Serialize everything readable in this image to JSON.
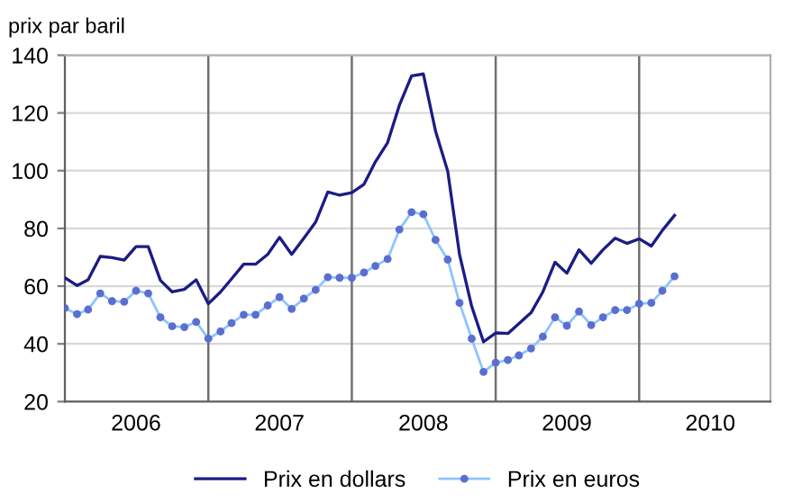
{
  "chart_data": {
    "type": "line",
    "ylabel": "prix par baril",
    "x": [
      "2006-01",
      "2006-02",
      "2006-03",
      "2006-04",
      "2006-05",
      "2006-06",
      "2006-07",
      "2006-08",
      "2006-09",
      "2006-10",
      "2006-11",
      "2006-12",
      "2007-01",
      "2007-02",
      "2007-03",
      "2007-04",
      "2007-05",
      "2007-06",
      "2007-07",
      "2007-08",
      "2007-09",
      "2007-10",
      "2007-11",
      "2007-12",
      "2008-01",
      "2008-02",
      "2008-03",
      "2008-04",
      "2008-05",
      "2008-06",
      "2008-07",
      "2008-08",
      "2008-09",
      "2008-10",
      "2008-11",
      "2008-12",
      "2009-01",
      "2009-02",
      "2009-03",
      "2009-04",
      "2009-05",
      "2009-06",
      "2009-07",
      "2009-08",
      "2009-09",
      "2009-10",
      "2009-11",
      "2009-12",
      "2010-01",
      "2010-02",
      "2010-03",
      "2010-04"
    ],
    "series": [
      {
        "name": "Prix en dollars",
        "color": "#1c1c86",
        "marker": "none",
        "values": [
          62.9,
          60.2,
          62.2,
          70.3,
          69.9,
          69.0,
          73.7,
          73.7,
          62.0,
          58.0,
          58.9,
          62.2,
          53.9,
          58.0,
          62.5,
          67.6,
          67.6,
          71.0,
          76.9,
          71.0,
          76.6,
          82.2,
          92.6,
          91.5,
          92.4,
          95.3,
          103.1,
          109.7,
          122.7,
          132.8,
          133.5,
          113.7,
          99.8,
          71.0,
          53.0,
          40.7,
          43.8,
          43.6,
          47.0,
          50.8,
          58.0,
          68.3,
          64.5,
          72.6,
          67.9,
          72.6,
          76.6,
          74.8,
          76.4,
          73.9,
          79.3,
          84.5
        ]
      },
      {
        "name": "Prix en euros",
        "color": "#8cc4ff",
        "marker": "circle",
        "values": [
          52.4,
          50.3,
          51.9,
          57.5,
          54.8,
          54.6,
          58.4,
          57.5,
          49.2,
          46.1,
          45.8,
          47.6,
          41.8,
          44.3,
          47.2,
          50.1,
          50.1,
          53.3,
          56.2,
          52.1,
          55.7,
          58.7,
          63.1,
          62.9,
          62.9,
          64.7,
          67.0,
          69.4,
          79.6,
          85.6,
          84.9,
          76.0,
          69.2,
          54.2,
          41.8,
          30.3,
          33.5,
          34.4,
          36.0,
          38.4,
          42.5,
          49.2,
          46.3,
          51.2,
          46.5,
          49.2,
          51.7,
          51.7,
          53.9,
          54.2,
          58.4,
          63.4
        ]
      }
    ],
    "xlim": [
      "2006-01",
      "2010-12"
    ],
    "xticks": [
      {
        "value": "2006-07",
        "label": "2006"
      },
      {
        "value": "2007-07",
        "label": "2007"
      },
      {
        "value": "2008-07",
        "label": "2008"
      },
      {
        "value": "2009-07",
        "label": "2009"
      },
      {
        "value": "2010-07",
        "label": "2010"
      }
    ],
    "ylim": [
      20,
      140
    ],
    "yticks": [
      20,
      40,
      60,
      80,
      100,
      120,
      140
    ],
    "ref_lines": [
      {
        "axis": "x",
        "value": "2007-01",
        "label": null,
        "color": "#707070"
      },
      {
        "axis": "x",
        "value": "2008-01",
        "label": null,
        "color": "#707070"
      },
      {
        "axis": "x",
        "value": "2009-01",
        "label": null,
        "color": "#707070"
      },
      {
        "axis": "x",
        "value": "2010-01",
        "label": null,
        "color": "#707070"
      }
    ],
    "grid": "y",
    "legend": "bottom",
    "line_style": "solid"
  }
}
